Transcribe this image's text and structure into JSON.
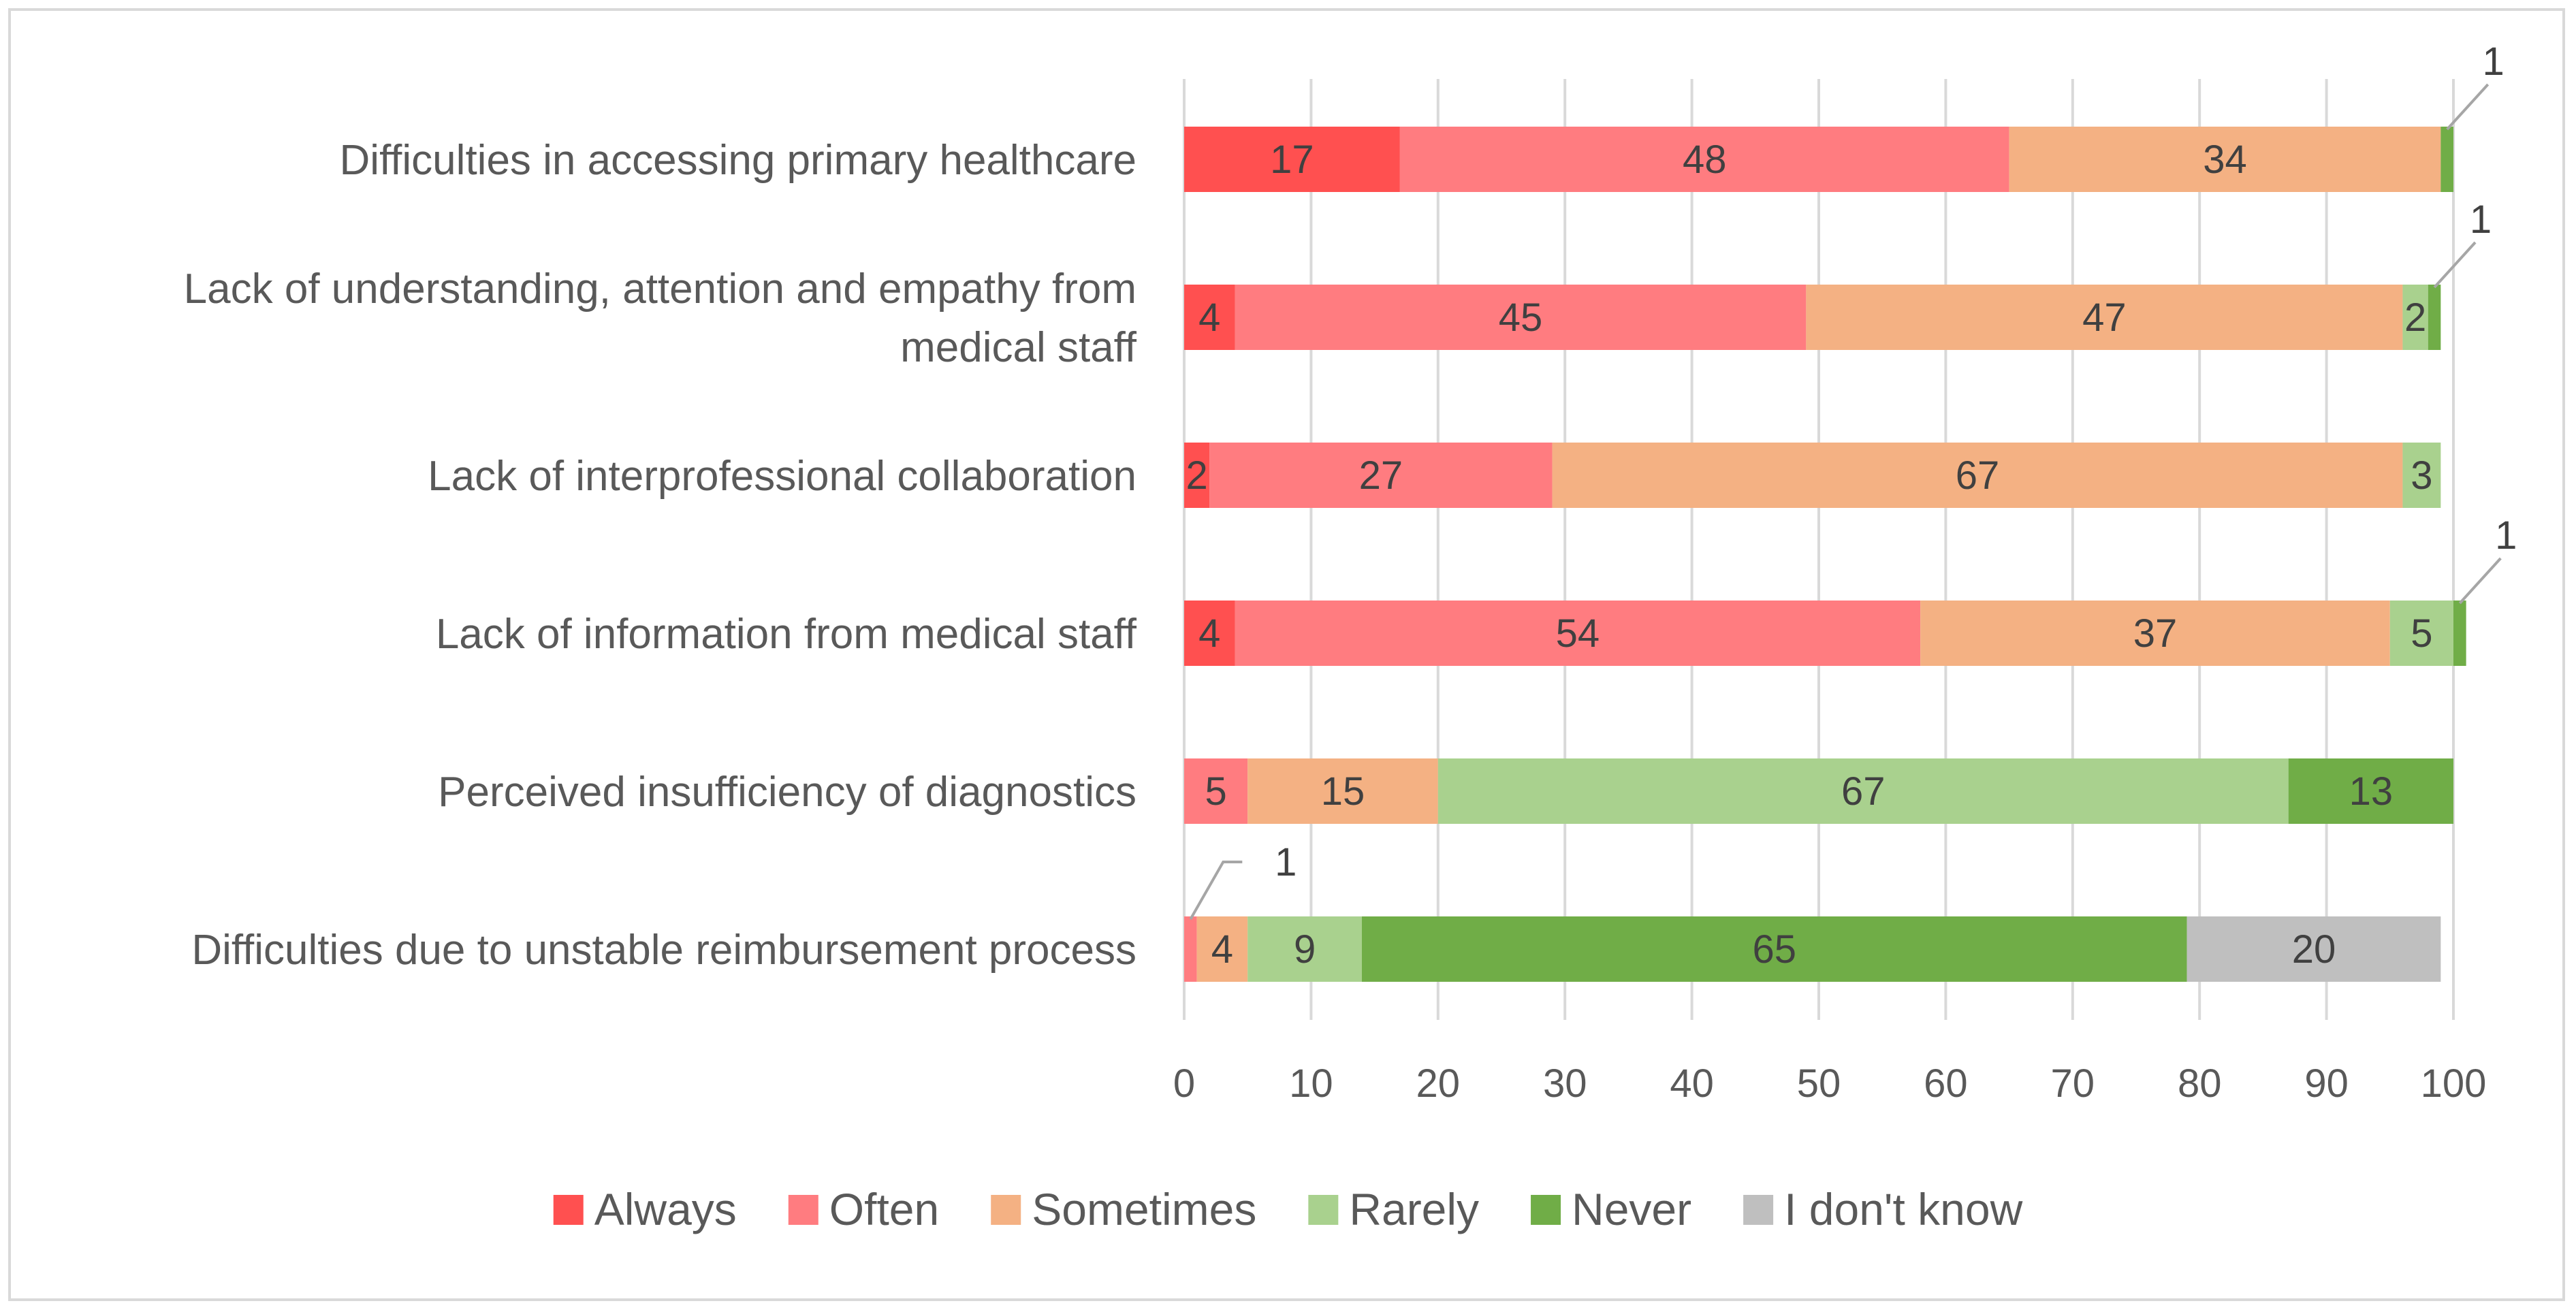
{
  "chart_data": {
    "type": "bar",
    "orientation": "horizontal",
    "stacked": true,
    "categories": [
      [
        "Difficulties in accessing primary healthcare"
      ],
      [
        "Lack of understanding, attention and empathy from",
        "medical staff"
      ],
      [
        "Lack of interprofessional collaboration"
      ],
      [
        "Lack of information from medical staff"
      ],
      [
        "Perceived insufficiency of diagnostics"
      ],
      [
        "Difficulties due to unstable reimbursement process"
      ]
    ],
    "series": [
      {
        "name": "Always",
        "color": "#ff5050",
        "values": [
          17,
          4,
          2,
          4,
          0,
          0
        ]
      },
      {
        "name": "Often",
        "color": "#ff7c80",
        "values": [
          48,
          45,
          27,
          54,
          5,
          1
        ]
      },
      {
        "name": "Sometimes",
        "color": "#f4b183",
        "values": [
          34,
          47,
          67,
          37,
          15,
          4
        ]
      },
      {
        "name": "Rarely",
        "color": "#a9d18e",
        "values": [
          0,
          2,
          3,
          5,
          67,
          9
        ]
      },
      {
        "name": "Never",
        "color": "#70ad47",
        "values": [
          1,
          1,
          0,
          1,
          13,
          65
        ]
      },
      {
        "name": "I don't know",
        "color": "#bfbfbf",
        "values": [
          0,
          0,
          0,
          0,
          0,
          20
        ]
      }
    ],
    "data_labels": [
      [
        "17",
        "48",
        "34",
        "",
        "1",
        ""
      ],
      [
        "4",
        "45",
        "47",
        "2",
        "1",
        ""
      ],
      [
        "2",
        "27",
        "67",
        "3",
        "",
        ""
      ],
      [
        "4",
        "54",
        "37",
        "5",
        "1",
        ""
      ],
      [
        "",
        "5",
        "15",
        "67",
        "13",
        ""
      ],
      [
        "",
        "1",
        "4",
        "9",
        "65",
        "20"
      ]
    ],
    "callouts": [
      {
        "category": 0,
        "series": 4
      },
      {
        "category": 1,
        "series": 4
      },
      {
        "category": 3,
        "series": 4
      },
      {
        "category": 5,
        "series": 1
      }
    ],
    "xlim": [
      0,
      100
    ],
    "xticks": [
      0,
      10,
      20,
      30,
      40,
      50,
      60,
      70,
      80,
      90,
      100
    ],
    "grid": "vertical",
    "legend": "bottom"
  }
}
